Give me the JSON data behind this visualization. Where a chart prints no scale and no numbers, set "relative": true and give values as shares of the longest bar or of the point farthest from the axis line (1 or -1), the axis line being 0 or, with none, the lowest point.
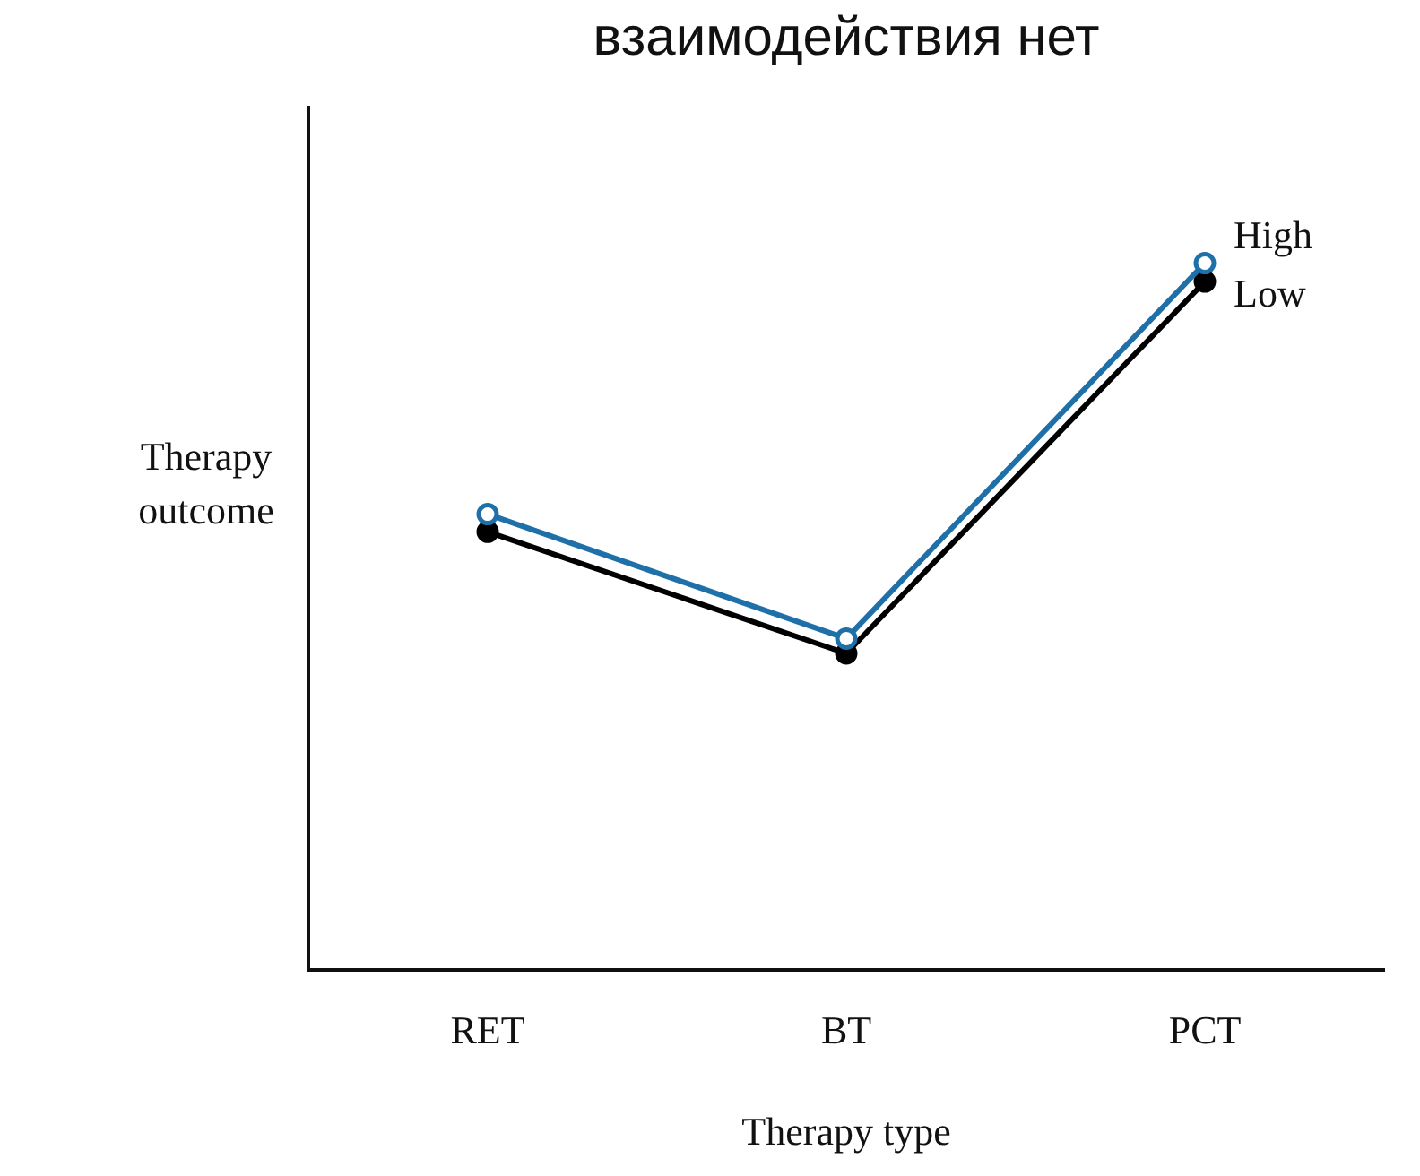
{
  "chart_data": {
    "type": "line",
    "title": "взаимодействия нет",
    "xlabel": "Therapy type",
    "ylabel": "Therapy\noutcome",
    "categories": [
      "RET",
      "BT",
      "PCT"
    ],
    "relative": true,
    "legend": false,
    "grid": false,
    "marker": "circle",
    "line_style": "solid",
    "series": [
      {
        "name": "High",
        "color": "#1f6fa8",
        "values": [
          0.645,
          0.469,
          1
        ]
      },
      {
        "name": "Low",
        "color": "#000000",
        "values": [
          0.62,
          0.448,
          0.974
        ]
      }
    ]
  }
}
